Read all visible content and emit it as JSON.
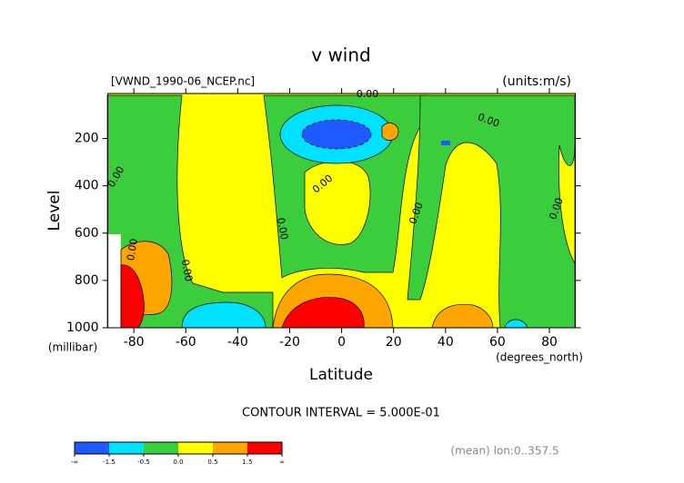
{
  "chart_data": {
    "type": "contour",
    "title": "v wind",
    "subtitle_left": "[VWND_1990-06_NCEP.nc]",
    "subtitle_right": "(units:m/s)",
    "x_label": "Latitude",
    "x_units": "(degrees_north)",
    "y_label": "Level",
    "y_units": "(millibar)",
    "xlim": [
      -90,
      90
    ],
    "xticks": [
      -80,
      -60,
      -40,
      -20,
      0,
      20,
      40,
      60,
      80
    ],
    "ylim": [
      1000,
      10
    ],
    "yticks": [
      200,
      400,
      600,
      800,
      1000
    ],
    "contour_interval": "CONTOUR INTERVAL = 5.000E-01",
    "footnote": "(mean) lon:0..357.5",
    "contour_labels": [
      "0.00",
      "0.00",
      "0.00",
      "0.00",
      "0.00",
      "0.00",
      "0.00",
      "0.00",
      "0.00"
    ],
    "colorbar": {
      "labels": [
        "-∞",
        "-1.5",
        "-0.5",
        "0.0",
        "0.5",
        "1.5",
        "∞"
      ],
      "colors": [
        "#1e5aff",
        "#00e0ff",
        "#3ccd3c",
        "#ffff00",
        "#ffa500",
        "#ff0000"
      ]
    }
  }
}
